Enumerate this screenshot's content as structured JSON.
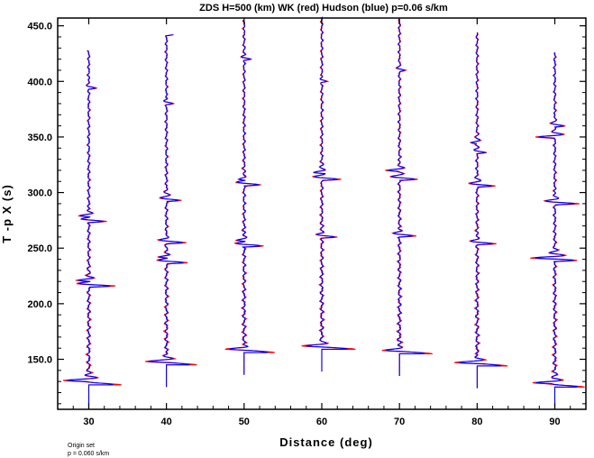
{
  "chart_data": {
    "type": "line",
    "title": "ZDS H=500 (km) WK (red) Hudson (blue) p=0.06 s/km",
    "xlabel": "Distance (deg)",
    "ylabel": "T -p X (s)",
    "xlim": [
      26,
      94
    ],
    "ylim": [
      105,
      457
    ],
    "x_ticks": [
      30,
      40,
      50,
      60,
      70,
      80,
      90
    ],
    "x_tick_labels": [
      "30",
      "40",
      "50",
      "60",
      "70",
      "80",
      "90"
    ],
    "y_ticks": [
      150,
      200,
      250,
      300,
      350,
      400,
      450
    ],
    "y_tick_labels": [
      "150.0",
      "200.0",
      "250.0",
      "300.0",
      "350.0",
      "400.0",
      "450.0"
    ],
    "grid": false,
    "series": [
      {
        "name": "WK",
        "color": "#ff0000"
      },
      {
        "name": "Hudson",
        "color": "#0000ff"
      }
    ],
    "traces": [
      {
        "distance": 30,
        "onset": 127,
        "end": 428,
        "big": [
          [
            127,
            1.4
          ],
          [
            131,
            -0.8
          ],
          [
            216,
            1.0
          ],
          [
            221,
            -0.7
          ],
          [
            274,
            0.7
          ],
          [
            279,
            -0.5
          ],
          [
            394,
            0.3
          ]
        ]
      },
      {
        "distance": 40,
        "onset": 145,
        "end": 442,
        "big": [
          [
            145,
            1.3
          ],
          [
            148,
            -0.6
          ],
          [
            237,
            0.8
          ],
          [
            242,
            -0.5
          ],
          [
            255,
            0.7
          ],
          [
            293,
            0.6
          ],
          [
            380,
            0.25
          ],
          [
            442,
            0.3
          ]
        ]
      },
      {
        "distance": 50,
        "onset": 156,
        "end": 455,
        "big": [
          [
            156,
            1.3
          ],
          [
            159,
            -0.5
          ],
          [
            252,
            0.8
          ],
          [
            257,
            -0.5
          ],
          [
            307,
            0.7
          ],
          [
            312,
            -0.4
          ],
          [
            420,
            0.3
          ]
        ]
      },
      {
        "distance": 60,
        "onset": 159,
        "end": 458,
        "big": [
          [
            159,
            1.4
          ],
          [
            162,
            -0.5
          ],
          [
            260,
            0.6
          ],
          [
            312,
            0.7
          ],
          [
            318,
            -0.4
          ],
          [
            400,
            0.2
          ]
        ]
      },
      {
        "distance": 70,
        "onset": 155,
        "end": 456,
        "big": [
          [
            155,
            1.4
          ],
          [
            158,
            -0.5
          ],
          [
            261,
            0.6
          ],
          [
            312,
            0.7
          ],
          [
            320,
            -0.5
          ],
          [
            410,
            0.2
          ]
        ]
      },
      {
        "distance": 80,
        "onset": 144,
        "end": 444,
        "big": [
          [
            144,
            1.3
          ],
          [
            147,
            -0.6
          ],
          [
            254,
            0.7
          ],
          [
            306,
            0.7
          ],
          [
            336,
            0.4
          ],
          [
            345,
            -0.3
          ]
        ]
      },
      {
        "distance": 90,
        "onset": 125,
        "end": 426,
        "big": [
          [
            125,
            1.3
          ],
          [
            129,
            -0.7
          ],
          [
            239,
            0.9
          ],
          [
            241,
            -0.6
          ],
          [
            290,
            0.9
          ],
          [
            350,
            -0.7
          ],
          [
            360,
            0.4
          ]
        ]
      }
    ]
  },
  "notes": {
    "line1": "Origin set",
    "line2": "p = 0.060 s/km"
  }
}
